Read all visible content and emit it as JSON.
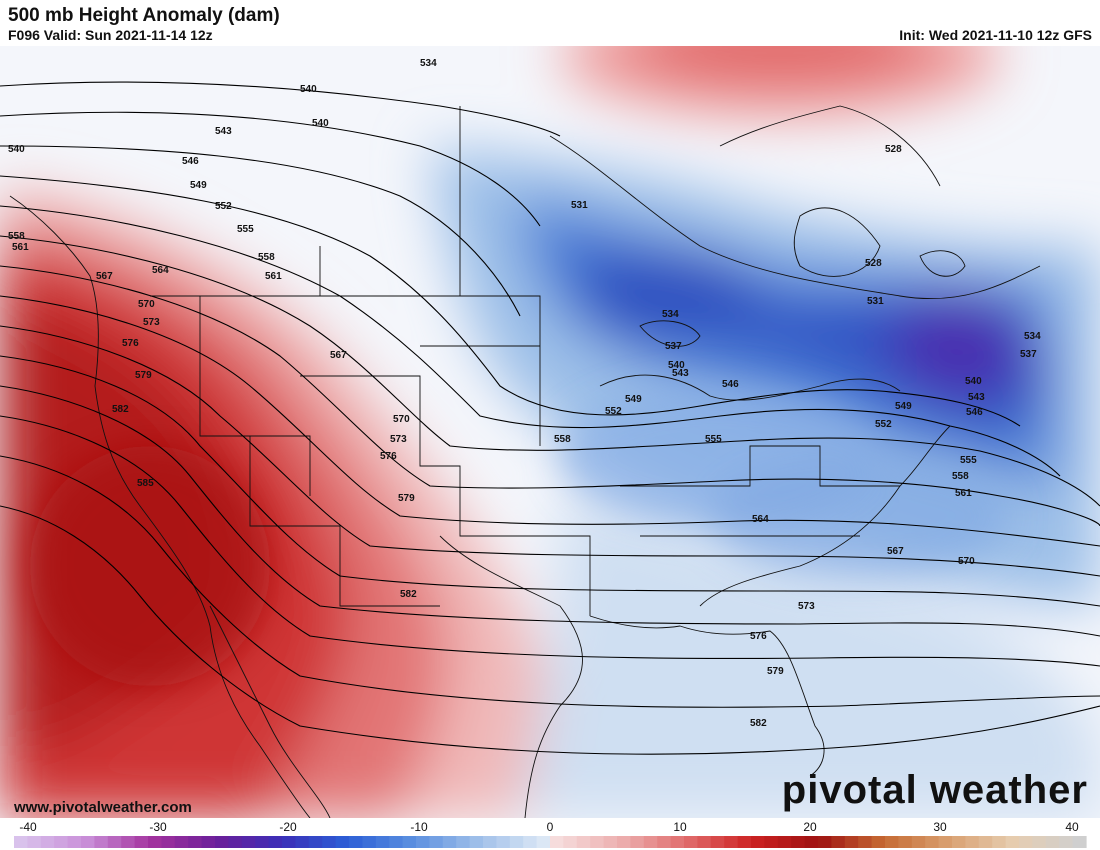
{
  "header": {
    "title": "500 mb Height Anomaly (dam)",
    "valid": "F096 Valid: Sun 2021-11-14 12z",
    "init": "Init: Wed 2021-11-10 12z GFS"
  },
  "footer": {
    "site": "www.pivotalweather.com",
    "brand": "pivotal weather"
  },
  "colorbar": {
    "tick_labels": [
      "-40",
      "-30",
      "-20",
      "-10",
      "0",
      "10",
      "20",
      "30",
      "40"
    ],
    "range": [
      -40,
      40
    ],
    "negative_colors": [
      "#d9c2ec",
      "#c98fd9",
      "#a3339e",
      "#6b1f9a",
      "#3b2fb8",
      "#2c5fd6",
      "#5a8fe0",
      "#9fbfe9",
      "#dbe7f5"
    ],
    "positive_colors": [
      "#f6dcdc",
      "#ecaeae",
      "#e06b6b",
      "#cc2222",
      "#9e1212",
      "#c66a33",
      "#d9a070",
      "#e6cdb0",
      "#cfcfcf"
    ]
  },
  "map": {
    "contour_labels": [
      "534",
      "537",
      "540",
      "543",
      "546",
      "549",
      "552",
      "555",
      "558",
      "561",
      "564",
      "567",
      "570",
      "573",
      "576",
      "579",
      "582",
      "585",
      "528",
      "531",
      "540",
      "552",
      "558",
      "567",
      "570",
      "573",
      "576",
      "579",
      "582",
      "555",
      "558",
      "561",
      "564",
      "567",
      "570",
      "573",
      "576",
      "579",
      "582",
      "528",
      "531",
      "534",
      "537",
      "540",
      "543",
      "546",
      "549",
      "552",
      "555",
      "534",
      "537",
      "540",
      "543",
      "546",
      "549",
      "552",
      "555"
    ]
  }
}
